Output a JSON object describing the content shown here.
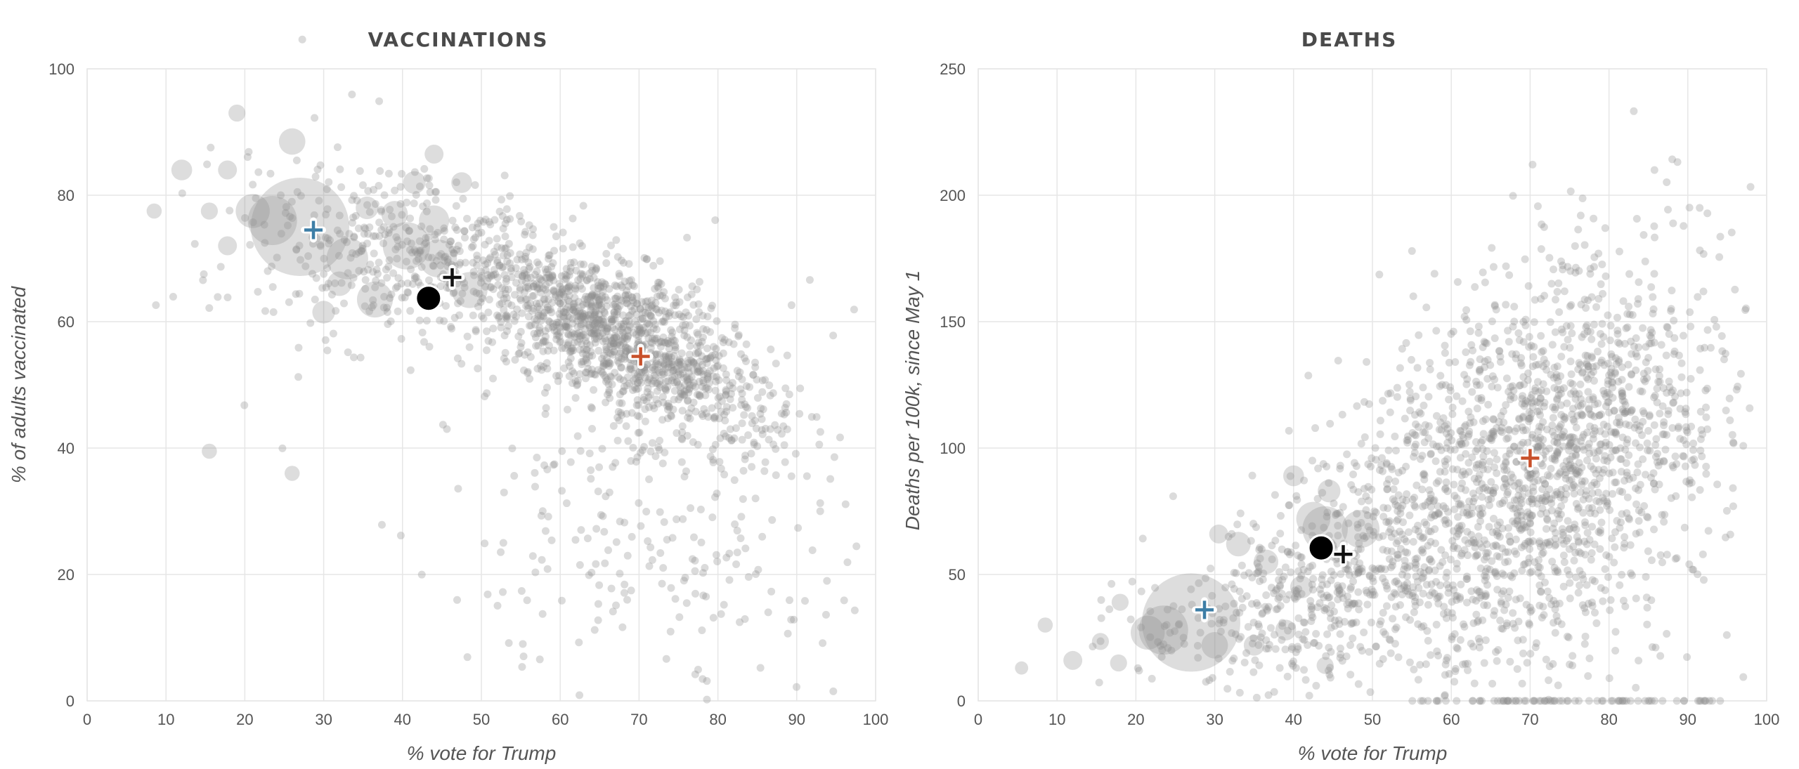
{
  "chart_data": [
    {
      "type": "scatter",
      "title": "VACCINATIONS",
      "xlabel": "% vote for Trump",
      "ylabel": "% of adults vaccinated",
      "xlim": [
        0,
        100
      ],
      "ylim": [
        0,
        100
      ],
      "x_ticks": [
        0,
        10,
        20,
        30,
        40,
        50,
        60,
        70,
        80,
        90,
        100
      ],
      "y_ticks": [
        0,
        20,
        40,
        60,
        80,
        100
      ],
      "grid": true,
      "point_color": "#8f8f8f",
      "highlights": [
        {
          "kind": "plus",
          "x": 28.7,
          "y": 74.5,
          "color": "#3d7ea6"
        },
        {
          "kind": "plus",
          "x": 70.2,
          "y": 54.5,
          "color": "#c8502a"
        },
        {
          "kind": "plus",
          "x": 46.3,
          "y": 67.0,
          "color": "#111111"
        },
        {
          "kind": "dot",
          "x": 43.3,
          "y": 63.7,
          "color": "#000000"
        }
      ],
      "large_points": [
        {
          "x": 27.0,
          "y": 75.0,
          "r": 5.2
        },
        {
          "x": 23.5,
          "y": 76.0,
          "r": 2.6
        },
        {
          "x": 21.0,
          "y": 77.5,
          "r": 1.8
        },
        {
          "x": 26.0,
          "y": 88.5,
          "r": 1.4
        },
        {
          "x": 12.0,
          "y": 84.0,
          "r": 1.1
        },
        {
          "x": 17.8,
          "y": 84.0,
          "r": 1.0
        },
        {
          "x": 19.0,
          "y": 93.0,
          "r": 0.9
        },
        {
          "x": 17.8,
          "y": 72.0,
          "r": 1.0
        },
        {
          "x": 15.5,
          "y": 77.5,
          "r": 0.9
        },
        {
          "x": 36.5,
          "y": 63.5,
          "r": 1.9
        },
        {
          "x": 30.0,
          "y": 61.5,
          "r": 1.2
        },
        {
          "x": 33.0,
          "y": 70.0,
          "r": 2.2
        },
        {
          "x": 40.5,
          "y": 72.0,
          "r": 2.5
        },
        {
          "x": 44.5,
          "y": 70.0,
          "r": 2.0
        },
        {
          "x": 44.0,
          "y": 76.0,
          "r": 1.6
        },
        {
          "x": 41.5,
          "y": 82.0,
          "r": 1.2
        },
        {
          "x": 48.5,
          "y": 65.0,
          "r": 1.9
        },
        {
          "x": 39.0,
          "y": 77.0,
          "r": 1.4
        },
        {
          "x": 35.5,
          "y": 78.0,
          "r": 1.2
        },
        {
          "x": 47.5,
          "y": 82.0,
          "r": 1.1
        },
        {
          "x": 44.0,
          "y": 86.5,
          "r": 1.0
        },
        {
          "x": 26.0,
          "y": 36.0,
          "r": 0.8
        },
        {
          "x": 15.5,
          "y": 39.5,
          "r": 0.8
        },
        {
          "x": 8.5,
          "y": 77.5,
          "r": 0.8
        },
        {
          "x": 32.0,
          "y": 66.0,
          "r": 1.3
        }
      ],
      "density_clusters": [
        {
          "cx": 67,
          "cy": 58,
          "sx": 10,
          "sy": 8,
          "rho": -0.72,
          "n": 1300
        },
        {
          "cx": 42,
          "cy": 70,
          "sx": 8,
          "sy": 7,
          "rho": -0.3,
          "n": 250
        },
        {
          "cx": 72,
          "cy": 32,
          "sx": 14,
          "sy": 16,
          "rho": 0.0,
          "n": 320
        },
        {
          "cx": 30,
          "cy": 72,
          "sx": 9,
          "sy": 10,
          "rho": 0.0,
          "n": 110
        }
      ]
    },
    {
      "type": "scatter",
      "title": "DEATHS",
      "xlabel": "% vote for Trump",
      "ylabel": "Deaths per 100k, since May 1",
      "xlim": [
        0,
        100
      ],
      "ylim": [
        0,
        250
      ],
      "x_ticks": [
        0,
        10,
        20,
        30,
        40,
        50,
        60,
        70,
        80,
        90,
        100
      ],
      "y_ticks": [
        0,
        50,
        100,
        150,
        200,
        250
      ],
      "grid": true,
      "point_color": "#8f8f8f",
      "highlights": [
        {
          "kind": "plus",
          "x": 28.7,
          "y": 36.0,
          "color": "#3d7ea6"
        },
        {
          "kind": "plus",
          "x": 70.0,
          "y": 96.0,
          "color": "#c8502a"
        },
        {
          "kind": "plus",
          "x": 46.3,
          "y": 58.0,
          "color": "#111111"
        },
        {
          "kind": "dot",
          "x": 43.5,
          "y": 60.5,
          "color": "#000000"
        }
      ],
      "large_points": [
        {
          "x": 27.0,
          "y": 31.0,
          "r": 5.2
        },
        {
          "x": 23.5,
          "y": 28.0,
          "r": 2.6
        },
        {
          "x": 21.5,
          "y": 27.0,
          "r": 1.8
        },
        {
          "x": 30.0,
          "y": 22.0,
          "r": 1.4
        },
        {
          "x": 44.0,
          "y": 68.0,
          "r": 2.4
        },
        {
          "x": 48.5,
          "y": 68.0,
          "r": 2.0
        },
        {
          "x": 42.5,
          "y": 72.0,
          "r": 1.8
        },
        {
          "x": 44.5,
          "y": 83.0,
          "r": 1.2
        },
        {
          "x": 40.0,
          "y": 89.0,
          "r": 1.1
        },
        {
          "x": 33.0,
          "y": 62.0,
          "r": 1.3
        },
        {
          "x": 30.5,
          "y": 66.0,
          "r": 1.0
        },
        {
          "x": 36.5,
          "y": 55.0,
          "r": 1.3
        },
        {
          "x": 15.5,
          "y": 23.5,
          "r": 0.9
        },
        {
          "x": 12.0,
          "y": 16.0,
          "r": 1.0
        },
        {
          "x": 17.8,
          "y": 15.0,
          "r": 0.9
        },
        {
          "x": 18.0,
          "y": 39.0,
          "r": 0.9
        },
        {
          "x": 41.0,
          "y": 45.0,
          "r": 1.2
        },
        {
          "x": 44.0,
          "y": 14.0,
          "r": 0.9
        },
        {
          "x": 35.0,
          "y": 22.0,
          "r": 1.1
        },
        {
          "x": 39.0,
          "y": 28.0,
          "r": 1.1
        },
        {
          "x": 8.5,
          "y": 30.0,
          "r": 0.8
        },
        {
          "x": 5.5,
          "y": 13.0,
          "r": 0.7
        }
      ],
      "density_clusters": [
        {
          "cx": 73,
          "cy": 95,
          "sx": 11,
          "sy": 42,
          "rho": 0.3,
          "n": 1500
        },
        {
          "cx": 45,
          "cy": 45,
          "sx": 9,
          "sy": 20,
          "rho": 0.35,
          "n": 350
        },
        {
          "cx": 58,
          "cy": 75,
          "sx": 10,
          "sy": 35,
          "rho": 0.2,
          "n": 380
        },
        {
          "cx": 30,
          "cy": 30,
          "sx": 8,
          "sy": 14,
          "rho": 0.2,
          "n": 90
        }
      ],
      "zero_band": {
        "x_min": 55,
        "x_max": 95,
        "y": 0,
        "n": 80
      }
    }
  ]
}
